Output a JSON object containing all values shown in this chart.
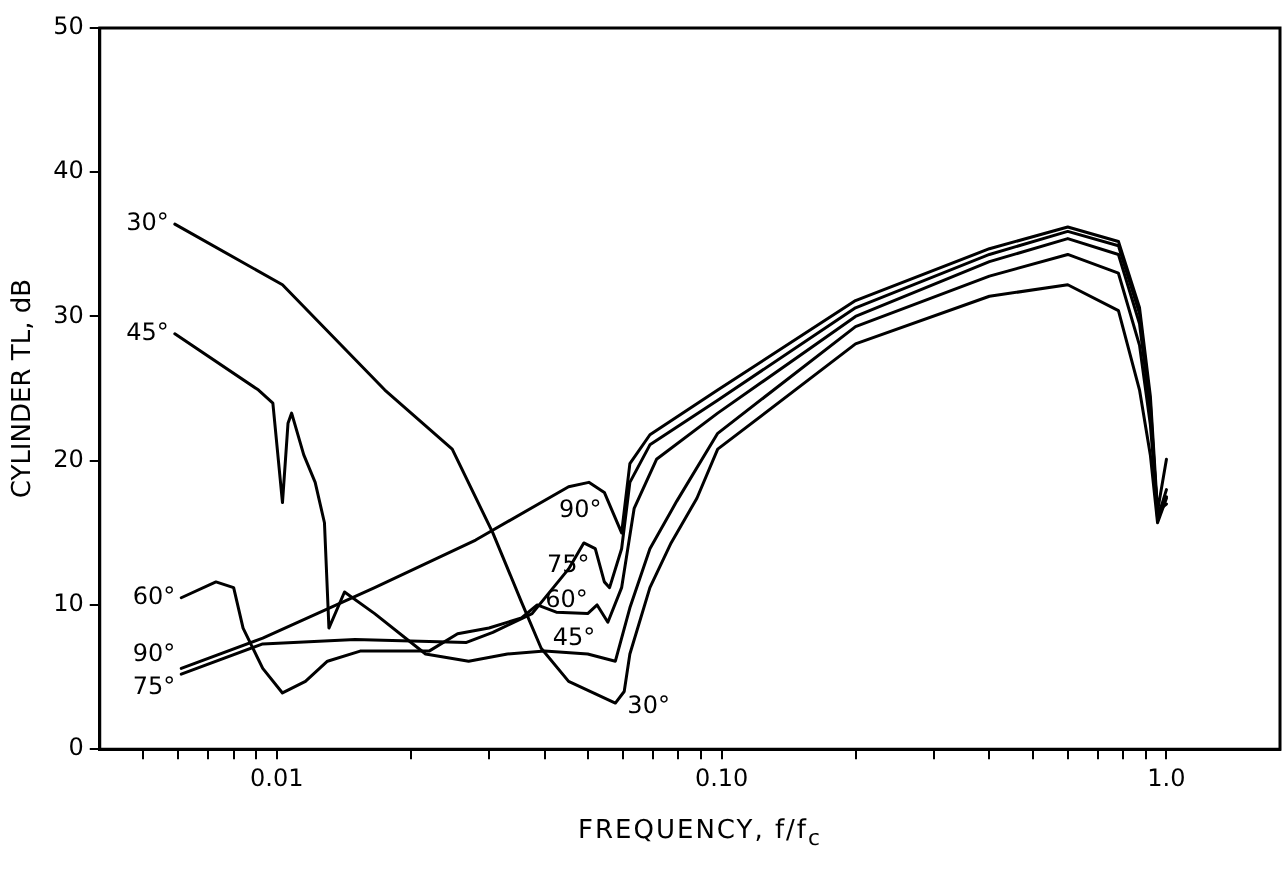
{
  "chart_data": {
    "type": "line",
    "xlabel": "FREQUENCY, f/f$_{c}$",
    "ylabel": "CYLINDER TL, dB",
    "log": "x",
    "grid": false,
    "legend": false,
    "marker": "none",
    "line_style": "solid",
    "xlim": [
      0.004,
      1.8
    ],
    "ylim": [
      0,
      50
    ],
    "xticks": [
      {
        "value": 0.005,
        "label": null
      },
      {
        "value": 0.006,
        "label": null
      },
      {
        "value": 0.007,
        "label": null
      },
      {
        "value": 0.008,
        "label": null
      },
      {
        "value": 0.009,
        "label": null
      },
      {
        "value": 0.01,
        "label": "0.01"
      },
      {
        "value": 0.02,
        "label": null
      },
      {
        "value": 0.03,
        "label": null
      },
      {
        "value": 0.04,
        "label": null
      },
      {
        "value": 0.05,
        "label": null
      },
      {
        "value": 0.06,
        "label": null
      },
      {
        "value": 0.07,
        "label": null
      },
      {
        "value": 0.08,
        "label": null
      },
      {
        "value": 0.09,
        "label": null
      },
      {
        "value": 0.1,
        "label": "0.10"
      },
      {
        "value": 0.2,
        "label": null
      },
      {
        "value": 0.3,
        "label": null
      },
      {
        "value": 0.4,
        "label": null
      },
      {
        "value": 0.5,
        "label": null
      },
      {
        "value": 0.6,
        "label": null
      },
      {
        "value": 0.7,
        "label": null
      },
      {
        "value": 0.8,
        "label": null
      },
      {
        "value": 0.9,
        "label": null
      },
      {
        "value": 1,
        "label": "1.0"
      }
    ],
    "yticks": [
      0,
      10,
      20,
      30,
      40,
      50
    ],
    "series": [
      {
        "name": "30°",
        "color": "#000000",
        "x": [
          0.0059,
          0.0103,
          0.0175,
          0.0248,
          0.0306,
          0.0355,
          0.0393,
          0.0453,
          0.0577,
          0.0604,
          0.0622,
          0.069,
          0.077,
          0.088,
          0.098,
          0.2,
          0.4,
          0.6,
          0.78,
          0.87,
          0.92,
          0.955,
          1.0
        ],
        "values": [
          36.4,
          32.2,
          24.9,
          20.8,
          15.0,
          10.2,
          7.0,
          4.7,
          3.2,
          4.0,
          6.6,
          11.2,
          14.3,
          17.4,
          20.8,
          28.1,
          31.4,
          32.2,
          30.4,
          24.9,
          20.4,
          15.7,
          17.4
        ]
      },
      {
        "name": "45°",
        "color": "#000000",
        "x": [
          0.0059,
          0.0091,
          0.0098,
          0.0103,
          0.0106,
          0.0108,
          0.0115,
          0.0122,
          0.0128,
          0.0131,
          0.0142,
          0.0166,
          0.0216,
          0.027,
          0.033,
          0.04,
          0.05,
          0.0577,
          0.0622,
          0.069,
          0.0793,
          0.098,
          0.2,
          0.4,
          0.6,
          0.78,
          0.87,
          0.92,
          0.955,
          1.0
        ],
        "values": [
          28.8,
          24.9,
          24.0,
          17.1,
          22.6,
          23.3,
          20.4,
          18.5,
          15.7,
          8.4,
          10.9,
          9.4,
          6.6,
          6.1,
          6.6,
          6.8,
          6.6,
          6.1,
          9.8,
          13.9,
          17.2,
          21.9,
          29.3,
          32.8,
          34.3,
          33.0,
          28.0,
          22.5,
          16.5,
          17.0
        ]
      },
      {
        "name": "60°",
        "color": "#000000",
        "x": [
          0.0061,
          0.0073,
          0.008,
          0.0084,
          0.0093,
          0.0103,
          0.0116,
          0.013,
          0.0154,
          0.022,
          0.0255,
          0.03,
          0.0355,
          0.0385,
          0.0425,
          0.05,
          0.0525,
          0.0555,
          0.0596,
          0.0636,
          0.0714,
          0.098,
          0.2,
          0.4,
          0.6,
          0.78,
          0.87,
          0.92,
          0.955,
          1.0
        ],
        "values": [
          10.5,
          11.6,
          11.2,
          8.4,
          5.6,
          3.9,
          4.7,
          6.1,
          6.8,
          6.8,
          8.0,
          8.4,
          9.1,
          10.0,
          9.5,
          9.4,
          10.0,
          8.8,
          11.2,
          16.7,
          20.1,
          23.3,
          30.0,
          33.8,
          35.4,
          34.3,
          29.5,
          23.5,
          16.3,
          17.5
        ]
      },
      {
        "name": "75°",
        "color": "#000000",
        "x": [
          0.0061,
          0.0093,
          0.015,
          0.0267,
          0.0306,
          0.0375,
          0.0453,
          0.049,
          0.052,
          0.0545,
          0.056,
          0.0596,
          0.0622,
          0.069,
          0.098,
          0.2,
          0.4,
          0.6,
          0.78,
          0.87,
          0.92,
          0.955,
          1.0
        ],
        "values": [
          5.2,
          7.3,
          7.6,
          7.4,
          8.1,
          9.4,
          12.5,
          14.3,
          13.9,
          11.6,
          11.2,
          13.9,
          18.5,
          21.1,
          24.2,
          30.6,
          34.3,
          35.9,
          34.9,
          30.2,
          24.0,
          16.0,
          18.0
        ]
      },
      {
        "name": "90°",
        "color": "#000000",
        "x": [
          0.0061,
          0.0093,
          0.0166,
          0.028,
          0.0453,
          0.0503,
          0.0545,
          0.0596,
          0.0622,
          0.069,
          0.098,
          0.2,
          0.4,
          0.6,
          0.78,
          0.87,
          0.92,
          0.955,
          1.0
        ],
        "values": [
          5.6,
          7.7,
          11.2,
          14.5,
          18.2,
          18.5,
          17.8,
          15.0,
          19.8,
          21.8,
          24.9,
          31.1,
          34.7,
          36.2,
          35.2,
          30.6,
          24.5,
          16.5,
          20.1
        ]
      }
    ]
  }
}
